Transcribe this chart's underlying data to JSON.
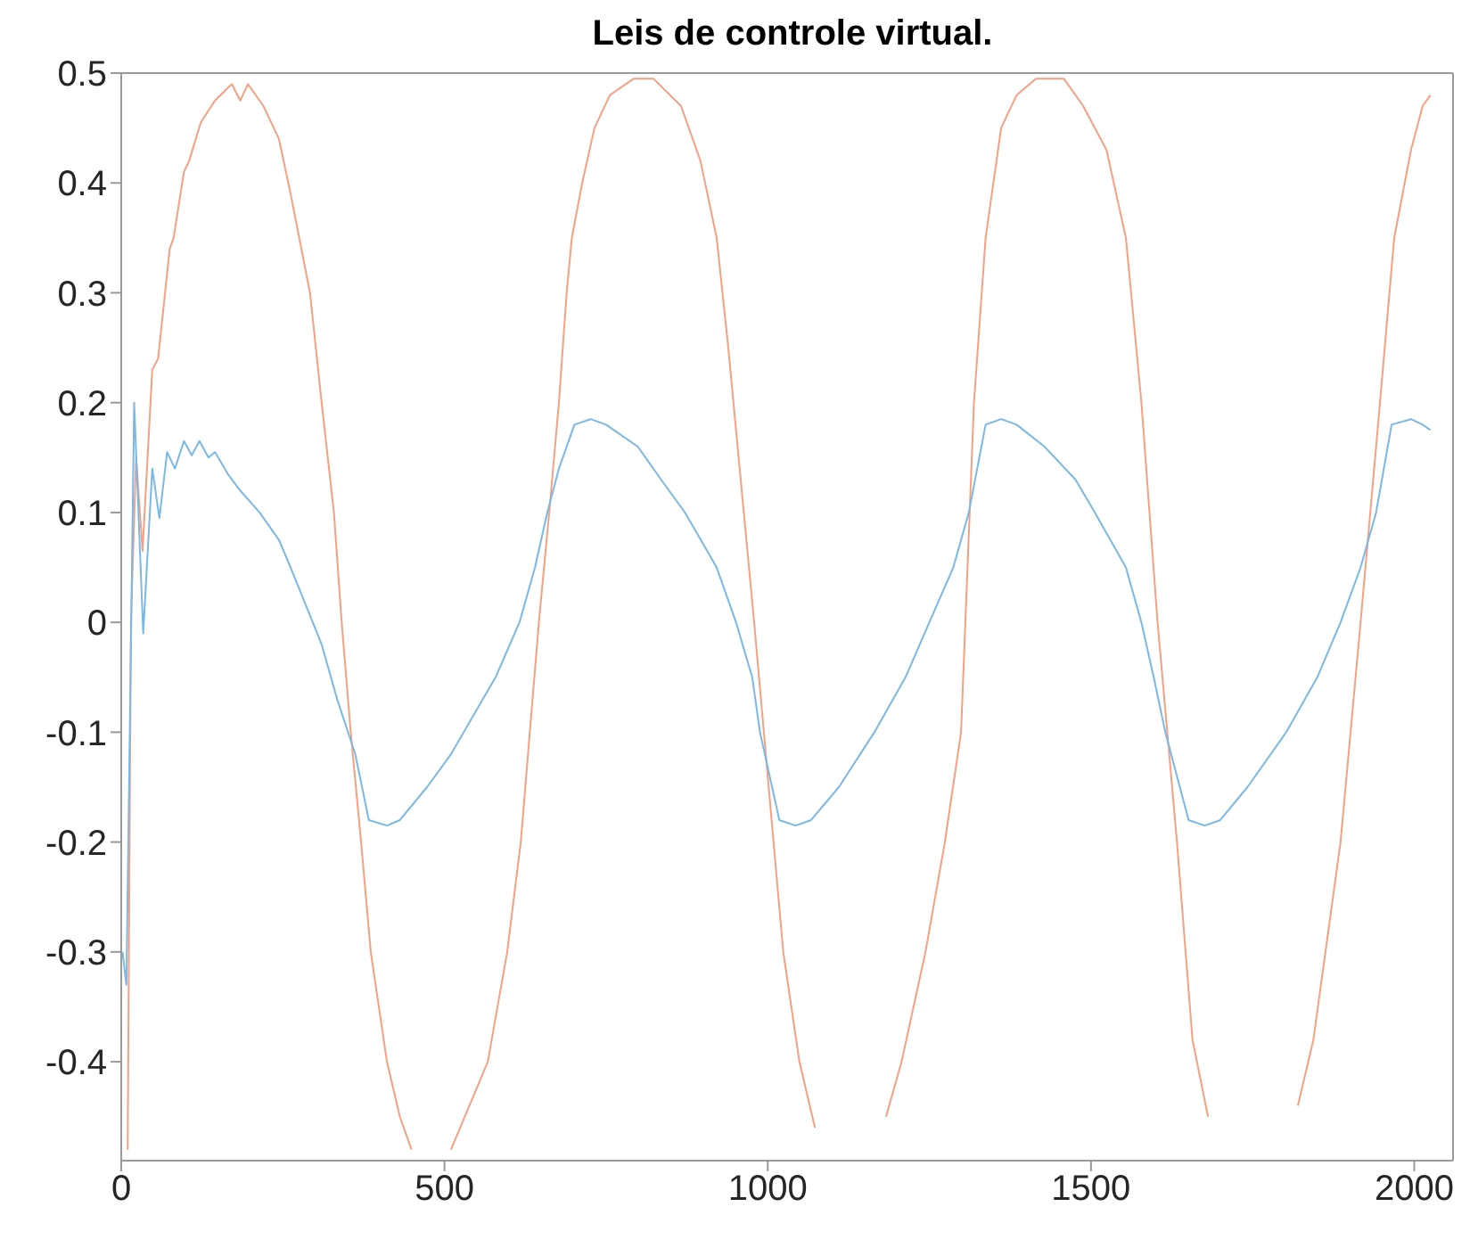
{
  "chart_data": {
    "type": "line",
    "title": "Leis de controle virtual.",
    "xlim": [
      0,
      2060
    ],
    "xticks": [
      0,
      500,
      1000,
      1500,
      2000
    ],
    "ylim": [
      -0.49,
      0.5
    ],
    "yticks": [
      -0.4,
      -0.3,
      -0.2,
      -0.1,
      0,
      0.1,
      0.2,
      0.3,
      0.4,
      0.5
    ],
    "marker": "none",
    "line_style": "solid",
    "series": [
      {
        "color": "#f4a082",
        "x": [
          10,
          15,
          23,
          33,
          48,
          57,
          75,
          81,
          97,
          105,
          123,
          145,
          171,
          184,
          196,
          220,
          244,
          262,
          292,
          310,
          329,
          341,
          355,
          371,
          386,
          411,
          431,
          449,
          494,
          510,
          567,
          597,
          618,
          632,
          646,
          662,
          677,
          689,
          697,
          713,
          732,
          756,
          793,
          823,
          866,
          896,
          921,
          939,
          963,
          979,
          994,
          1009,
          1024,
          1049,
          1073,
          1089,
          1146,
          1183,
          1207,
          1244,
          1274,
          1299,
          1319,
          1337,
          1361,
          1385,
          1415,
          1458,
          1488,
          1524,
          1554,
          1578,
          1603,
          1633,
          1657,
          1681,
          1717,
          1784,
          1820,
          1844,
          1886,
          1917,
          1947,
          1969,
          1995,
          2013,
          2025
        ],
        "values": [
          -0.48,
          0,
          0.15,
          0.065,
          0.23,
          0.24,
          0.34,
          0.35,
          0.41,
          0.42,
          0.455,
          0.475,
          0.49,
          0.475,
          0.49,
          0.47,
          0.44,
          0.39,
          0.3,
          0.2,
          0.1,
          0,
          -0.1,
          -0.2,
          -0.3,
          -0.4,
          -0.45,
          -0.48,
          null,
          -0.48,
          -0.4,
          -0.3,
          -0.2,
          -0.1,
          0,
          0.1,
          0.2,
          0.3,
          0.35,
          0.4,
          0.45,
          0.48,
          0.495,
          0.495,
          0.47,
          0.42,
          0.35,
          0.25,
          0.1,
          0,
          -0.1,
          -0.2,
          -0.3,
          -0.4,
          -0.46,
          null,
          null,
          -0.45,
          -0.4,
          -0.3,
          -0.2,
          -0.1,
          0.2,
          0.35,
          0.45,
          0.48,
          0.495,
          0.495,
          0.47,
          0.43,
          0.35,
          0.2,
          0,
          -0.2,
          -0.38,
          -0.45,
          null,
          null,
          -0.44,
          -0.38,
          -0.2,
          0,
          0.2,
          0.35,
          0.43,
          0.47,
          0.48
        ]
      },
      {
        "color": "#7ab8e6",
        "x": [
          2,
          8,
          20,
          34,
          48,
          59,
          71,
          83,
          97,
          109,
          121,
          135,
          145,
          165,
          184,
          214,
          244,
          262,
          286,
          310,
          334,
          362,
          383,
          411,
          431,
          473,
          510,
          579,
          616,
          640,
          659,
          677,
          701,
          726,
          750,
          799,
          835,
          872,
          921,
          951,
          976,
          988,
          1018,
          1043,
          1067,
          1110,
          1165,
          1213,
          1250,
          1287,
          1311,
          1337,
          1361,
          1385,
          1428,
          1476,
          1506,
          1554,
          1578,
          1597,
          1615,
          1651,
          1676,
          1700,
          1742,
          1802,
          1850,
          1886,
          1917,
          1941,
          1965,
          1995,
          2013,
          2025
        ],
        "values": [
          -0.3,
          -0.33,
          0.2,
          -0.01,
          0.14,
          0.095,
          0.155,
          0.14,
          0.165,
          0.152,
          0.165,
          0.15,
          0.155,
          0.135,
          0.12,
          0.1,
          0.075,
          0.05,
          0.015,
          -0.02,
          -0.07,
          -0.12,
          -0.18,
          -0.185,
          -0.18,
          -0.15,
          -0.12,
          -0.05,
          0,
          0.05,
          0.1,
          0.14,
          0.18,
          0.185,
          0.18,
          0.16,
          0.13,
          0.1,
          0.05,
          0,
          -0.05,
          -0.1,
          -0.18,
          -0.185,
          -0.18,
          -0.15,
          -0.1,
          -0.05,
          0,
          0.05,
          0.1,
          0.18,
          0.185,
          0.18,
          0.16,
          0.13,
          0.1,
          0.05,
          0,
          -0.05,
          -0.1,
          -0.18,
          -0.185,
          -0.18,
          -0.15,
          -0.1,
          -0.05,
          0,
          0.05,
          0.1,
          0.18,
          0.185,
          0.18,
          0.175
        ]
      }
    ]
  }
}
